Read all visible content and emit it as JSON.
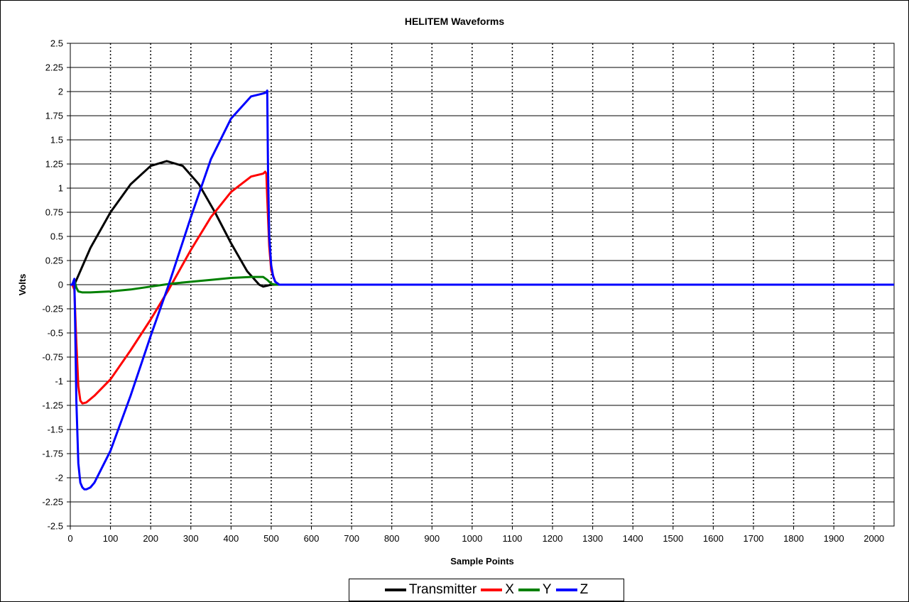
{
  "chart_data": {
    "type": "line",
    "title": "HELITEM Waveforms",
    "xlabel": "Sample Points",
    "ylabel": "Volts",
    "xlim": [
      0,
      2050
    ],
    "ylim": [
      -2.5,
      2.5
    ],
    "x_ticks": [
      0,
      100,
      200,
      300,
      400,
      500,
      600,
      700,
      800,
      900,
      1000,
      1100,
      1200,
      1300,
      1400,
      1500,
      1600,
      1700,
      1800,
      1900,
      2000
    ],
    "y_ticks": [
      2.5,
      2.25,
      2,
      1.75,
      1.5,
      1.25,
      1,
      0.75,
      0.5,
      0.25,
      0,
      -0.25,
      -0.5,
      -0.75,
      -1,
      -1.25,
      -1.5,
      -1.75,
      -2,
      -2.25,
      -2.5
    ],
    "x_tick_labels": [
      "0",
      "100",
      "200",
      "300",
      "400",
      "500",
      "600",
      "700",
      "800",
      "900",
      "1000",
      "1100",
      "1200",
      "1300",
      "1400",
      "1500",
      "1600",
      "1700",
      "1800",
      "1900",
      "2000"
    ],
    "y_tick_labels": [
      "2.5",
      "2.25",
      "2",
      "1.75",
      "1.5",
      "1.25",
      "1",
      "0.75",
      "0.5",
      "0.25",
      "0",
      "-0.25",
      "-0.5",
      "-0.75",
      "-1",
      "-1.25",
      "-1.5",
      "-1.75",
      "-2",
      "-2.25",
      "-2.5"
    ],
    "grid": {
      "horizontal": "solid",
      "vertical": "dotted"
    },
    "legend_position": "bottom",
    "series": [
      {
        "name": "Transmitter",
        "color": "#000000",
        "x": [
          0,
          5,
          10,
          50,
          100,
          150,
          200,
          240,
          280,
          320,
          360,
          400,
          440,
          470,
          480,
          490,
          500,
          2050
        ],
        "y": [
          0,
          0,
          0,
          0.38,
          0.75,
          1.04,
          1.23,
          1.28,
          1.23,
          1.04,
          0.75,
          0.43,
          0.14,
          0.0,
          -0.02,
          -0.01,
          0,
          0
        ]
      },
      {
        "name": "X",
        "color": "#ff0000",
        "x": [
          0,
          5,
          10,
          15,
          20,
          25,
          30,
          40,
          60,
          100,
          150,
          200,
          245,
          300,
          350,
          400,
          450,
          480,
          485,
          488,
          490,
          495,
          500,
          510,
          520,
          2050
        ],
        "y": [
          0,
          0,
          -0.05,
          -0.6,
          -1.05,
          -1.2,
          -1.23,
          -1.22,
          -1.15,
          -0.98,
          -0.68,
          -0.36,
          -0.05,
          0.36,
          0.7,
          0.96,
          1.12,
          1.15,
          1.17,
          1.15,
          0.9,
          0.4,
          0.15,
          0.03,
          0,
          0
        ]
      },
      {
        "name": "Y",
        "color": "#008000",
        "x": [
          0,
          5,
          10,
          15,
          20,
          30,
          50,
          100,
          150,
          200,
          250,
          300,
          350,
          400,
          450,
          480,
          490,
          500,
          510,
          2050
        ],
        "y": [
          0,
          0,
          0.05,
          -0.03,
          -0.07,
          -0.08,
          -0.08,
          -0.07,
          -0.05,
          -0.02,
          0.01,
          0.03,
          0.05,
          0.07,
          0.08,
          0.08,
          0.05,
          0.01,
          0,
          0
        ]
      },
      {
        "name": "Z",
        "color": "#0000ff",
        "x": [
          0,
          5,
          10,
          12,
          15,
          20,
          25,
          30,
          35,
          40,
          50,
          60,
          100,
          150,
          200,
          245,
          300,
          350,
          400,
          450,
          480,
          487,
          490,
          492,
          495,
          500,
          505,
          510,
          520,
          2050
        ],
        "y": [
          0,
          0,
          0.06,
          -0.4,
          -1.2,
          -1.85,
          -2.05,
          -2.1,
          -2.12,
          -2.12,
          -2.1,
          -2.05,
          -1.72,
          -1.15,
          -0.53,
          0.0,
          0.7,
          1.3,
          1.72,
          1.95,
          1.98,
          1.99,
          2.01,
          1.2,
          0.5,
          0.2,
          0.08,
          0.03,
          0,
          0
        ]
      }
    ]
  }
}
